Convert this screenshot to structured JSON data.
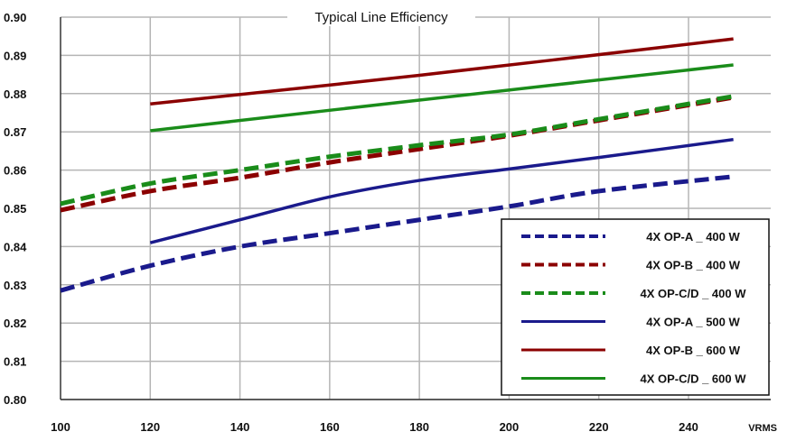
{
  "chart_data": {
    "type": "line",
    "title": "Typical Line Efficiency",
    "xlabel": "VRMS",
    "ylabel": "",
    "xlim": [
      100,
      250
    ],
    "ylim": [
      0.8,
      0.9
    ],
    "x_ticks": [
      100,
      120,
      140,
      160,
      180,
      200,
      220,
      240
    ],
    "y_ticks": [
      0.8,
      0.81,
      0.82,
      0.83,
      0.84,
      0.85,
      0.86,
      0.87,
      0.88,
      0.89,
      0.9
    ],
    "x_tick_labels": [
      "100",
      "120",
      "140",
      "160",
      "180",
      "200",
      "220",
      "240"
    ],
    "y_tick_labels": [
      "0.80",
      "0.81",
      "0.82",
      "0.83",
      "0.84",
      "0.85",
      "0.86",
      "0.87",
      "0.88",
      "0.89",
      "0.90"
    ],
    "grid": true,
    "legend_position": "bottom-right",
    "series": [
      {
        "name": "4X OP-A _ 400 W",
        "color": "#1a1a8c",
        "style": "dashed",
        "x": [
          100,
          120,
          140,
          160,
          180,
          200,
          220,
          250
        ],
        "y": [
          0.8285,
          0.835,
          0.84,
          0.8435,
          0.847,
          0.8505,
          0.8545,
          0.8583
        ]
      },
      {
        "name": "4X OP-B _ 400 W",
        "color": "#8b0000",
        "style": "dashed",
        "x": [
          100,
          120,
          140,
          160,
          180,
          200,
          220,
          250
        ],
        "y": [
          0.8495,
          0.8545,
          0.858,
          0.862,
          0.8655,
          0.869,
          0.873,
          0.879
        ]
      },
      {
        "name": "4X OP-C/D _ 400 W",
        "color": "#1a8c1a",
        "style": "dashed",
        "x": [
          100,
          120,
          140,
          160,
          180,
          200,
          220,
          250
        ],
        "y": [
          0.8512,
          0.8565,
          0.86,
          0.8635,
          0.8665,
          0.8693,
          0.8733,
          0.8793
        ]
      },
      {
        "name": "4X OP-A _ 500 W",
        "color": "#1a1a8c",
        "style": "solid",
        "x": [
          120,
          140,
          160,
          180,
          200,
          220,
          250
        ],
        "y": [
          0.841,
          0.847,
          0.853,
          0.8573,
          0.8603,
          0.8633,
          0.868
        ]
      },
      {
        "name": "4X OP-B _ 600 W",
        "color": "#8b0000",
        "style": "solid",
        "x": [
          120,
          180,
          250
        ],
        "y": [
          0.8773,
          0.8848,
          0.8943
        ]
      },
      {
        "name": "4X OP-C/D _ 600 W",
        "color": "#1a8c1a",
        "style": "solid",
        "x": [
          120,
          180,
          250
        ],
        "y": [
          0.8703,
          0.8783,
          0.8875
        ]
      }
    ]
  }
}
